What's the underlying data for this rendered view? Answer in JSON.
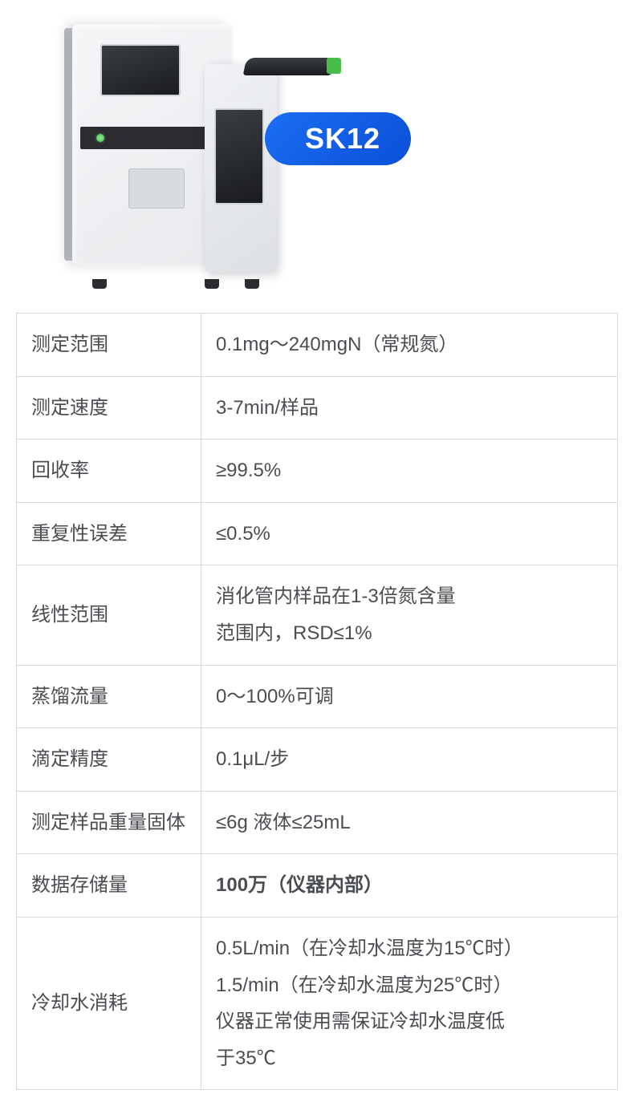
{
  "product": {
    "model": "SK12",
    "badge_bg": "#1b6ef3",
    "badge_color": "#ffffff"
  },
  "table": {
    "border_color": "#d5d8dc",
    "text_color": "#4a4d52",
    "highlight_color": "#1b6ef3",
    "label_fontsize": 24,
    "value_fontsize": 24,
    "label_col_width": 230,
    "rows": [
      {
        "label": "测定范围",
        "value": "0.1mg～240mgN（常规氮）",
        "highlight": false
      },
      {
        "label": "测定速度",
        "value": "3-7min/样品",
        "highlight": false
      },
      {
        "label": "回收率",
        "value": "≥99.5%",
        "highlight": false
      },
      {
        "label": "重复性误差",
        "value": "≤0.5%",
        "highlight": false
      },
      {
        "label": "线性范围",
        "value": "消化管内样品在1-3倍氮含量\n范围内，RSD≤1%",
        "highlight": false
      },
      {
        "label": "蒸馏流量",
        "value": "0～100%可调",
        "highlight": false
      },
      {
        "label": "滴定精度",
        "value": "0.1μL/步",
        "highlight": false
      },
      {
        "label": "测定样品重量固体",
        "value": "≤6g  液体≤25mL",
        "highlight": false
      },
      {
        "label": "数据存储量",
        "value": "100万（仪器内部）",
        "highlight": true
      },
      {
        "label": "冷却水消耗",
        "value": "0.5L/min（在冷却水温度为15℃时）\n1.5/min（在冷却水温度为25℃时）\n仪器正常使用需保证冷却水温度低\n于35℃",
        "highlight": false
      }
    ]
  },
  "device_style": {
    "body_color_light": "#f5f6f8",
    "body_color_dark": "#e8eaed",
    "dark_color": "#2a2c30",
    "screen_color": "#1a1c1f",
    "accent_green": "#4abc4a"
  }
}
